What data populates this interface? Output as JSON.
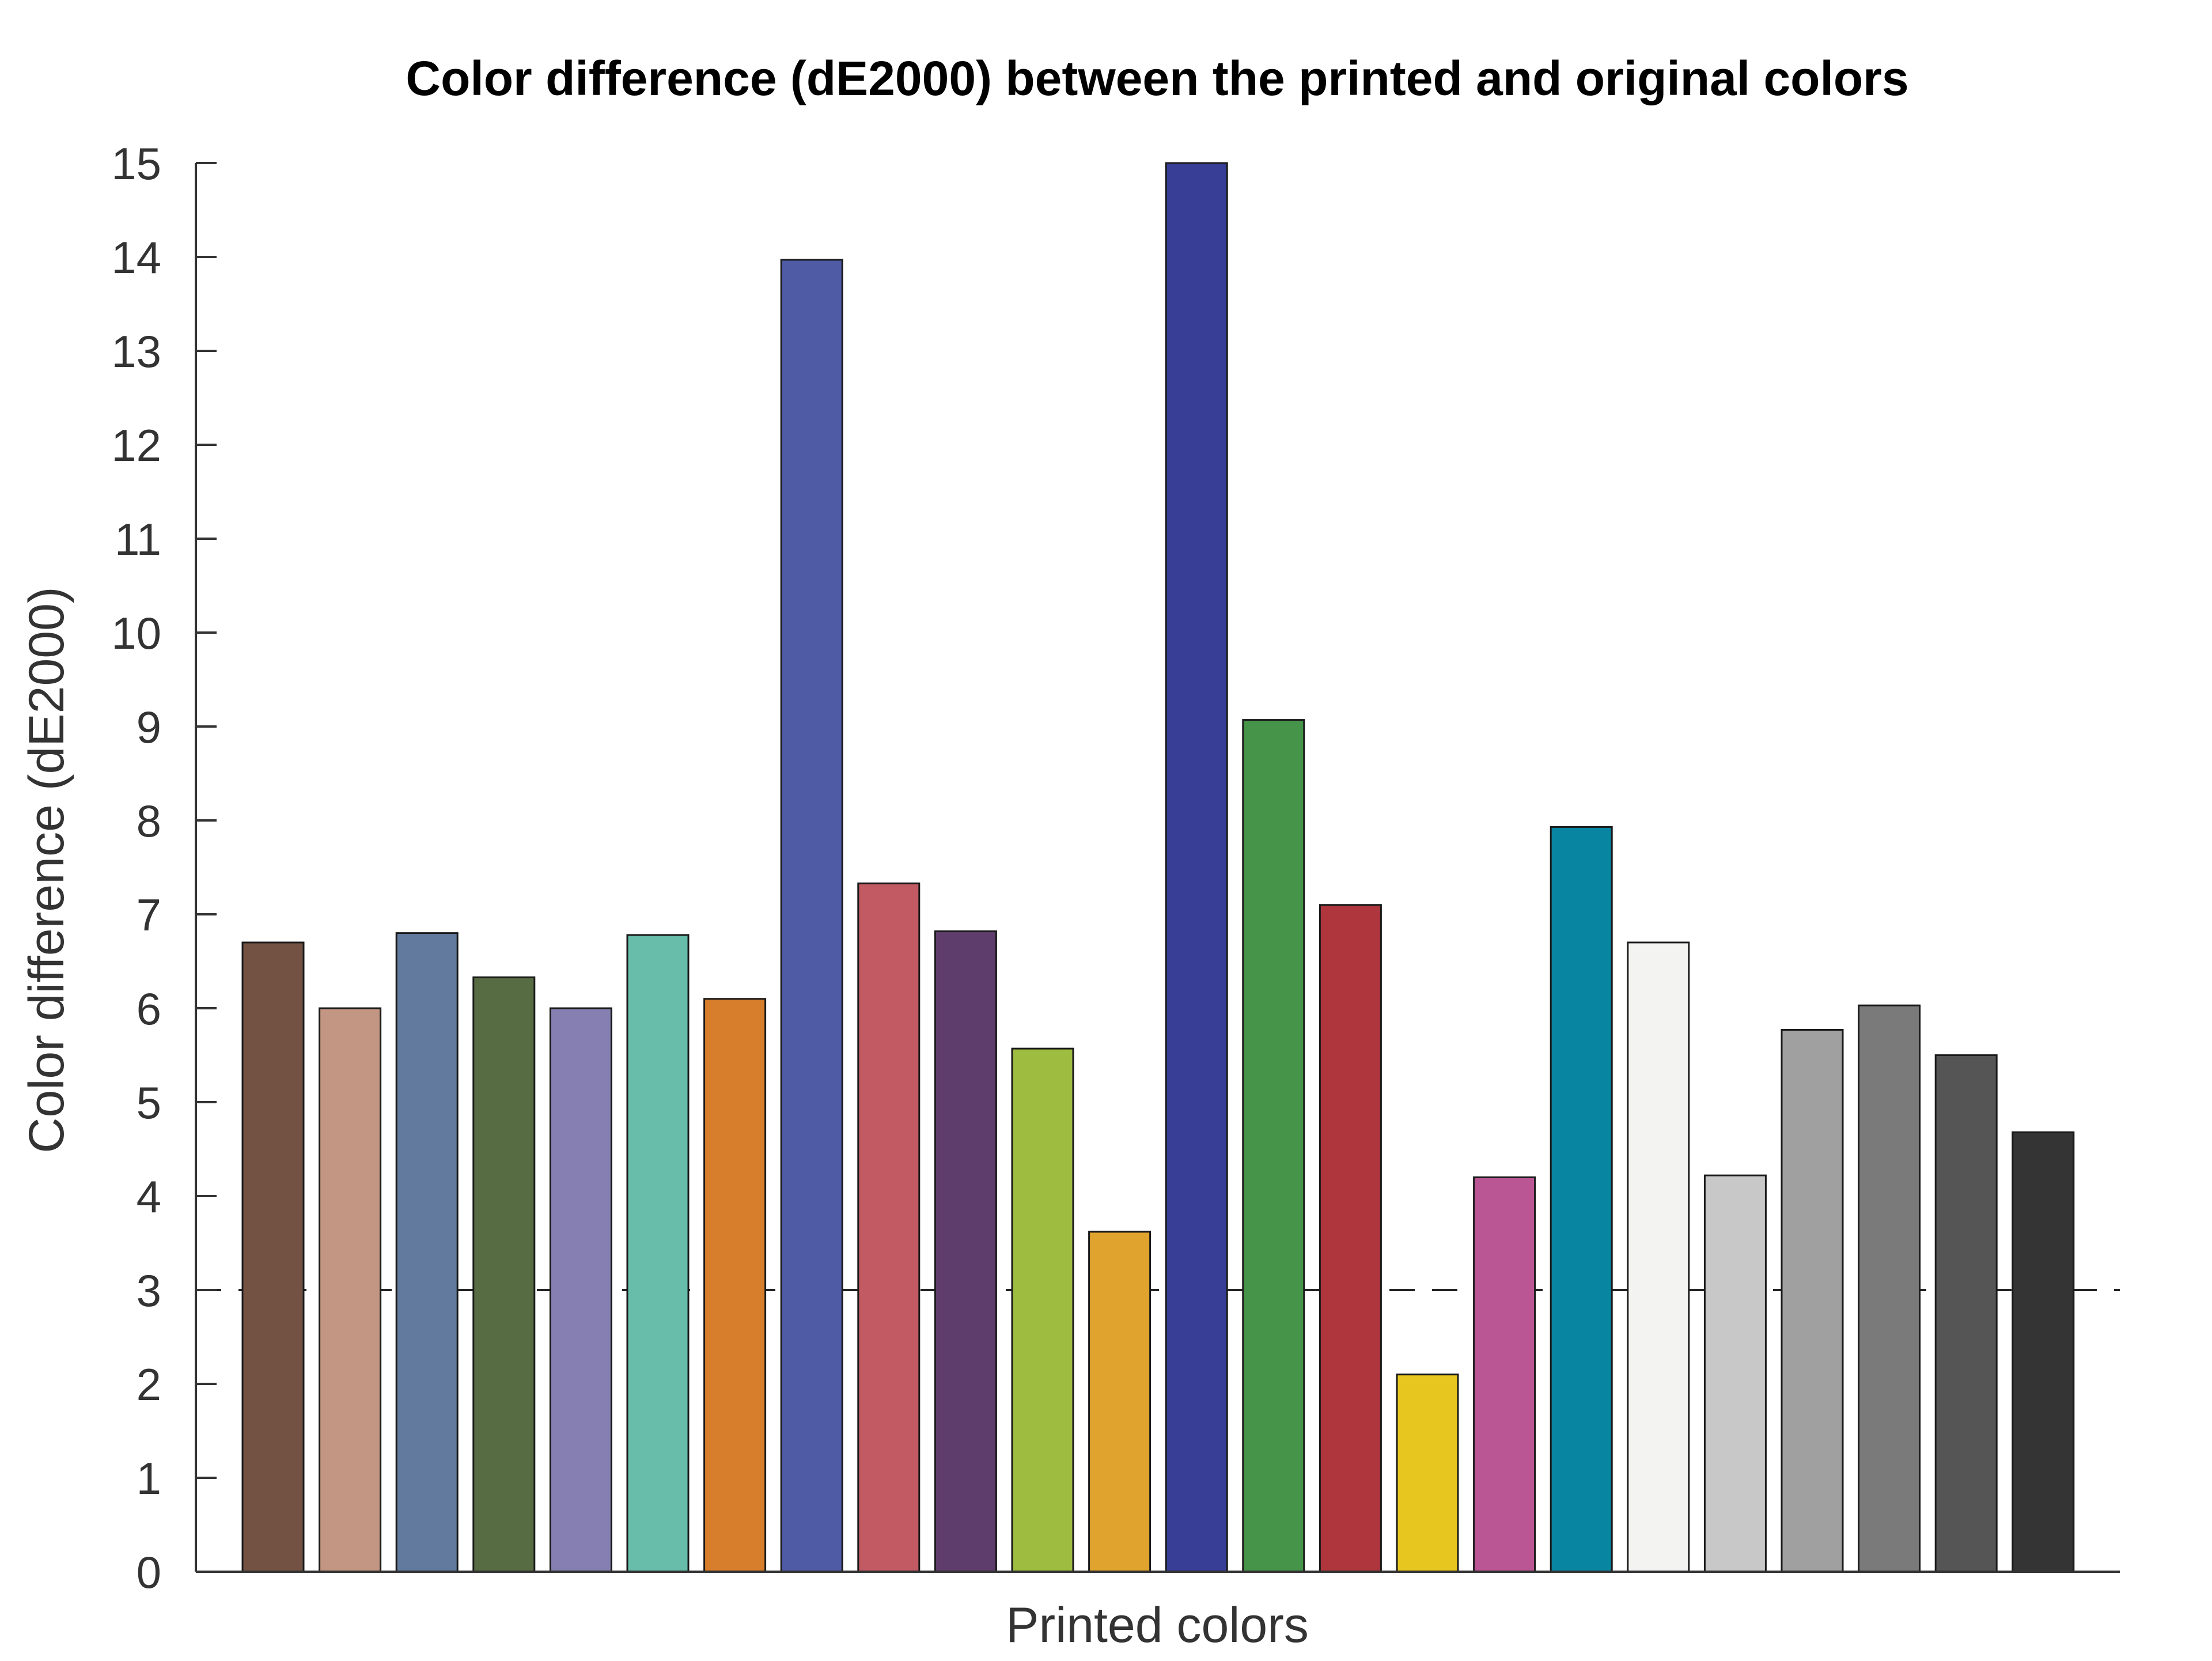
{
  "chart_data": {
    "type": "bar",
    "title": "Color difference (dE2000) between the printed and original colors",
    "xlabel": "Printed colors",
    "ylabel": "Color difference (dE2000)",
    "ylim": [
      0,
      15
    ],
    "yticks": [
      "0",
      "1",
      "2",
      "3",
      "4",
      "5",
      "6",
      "7",
      "8",
      "9",
      "10",
      "11",
      "12",
      "13",
      "14",
      "15"
    ],
    "values": [
      6.7,
      6.0,
      6.8,
      6.33,
      6.0,
      6.78,
      6.1,
      13.97,
      7.33,
      6.82,
      5.57,
      3.62,
      15.0,
      9.07,
      7.1,
      2.1,
      4.2,
      7.93,
      6.7,
      4.22,
      5.77,
      6.03,
      5.5,
      4.68
    ],
    "colors": [
      "#735244",
      "#c29682",
      "#627a9d",
      "#576c43",
      "#8580b1",
      "#67bdaa",
      "#d67e2c",
      "#505ba6",
      "#c15a63",
      "#5e3c6c",
      "#9dbc40",
      "#e0a32e",
      "#383d96",
      "#469449",
      "#af363c",
      "#e7c71f",
      "#bb5695",
      "#0885a1",
      "#f3f3f2",
      "#c8c8c8",
      "#a0a0a0",
      "#7a7a7a",
      "#555555",
      "#343434"
    ],
    "reference_line": {
      "value": 3,
      "style": "dashed"
    },
    "grid": false,
    "legend": "none"
  }
}
